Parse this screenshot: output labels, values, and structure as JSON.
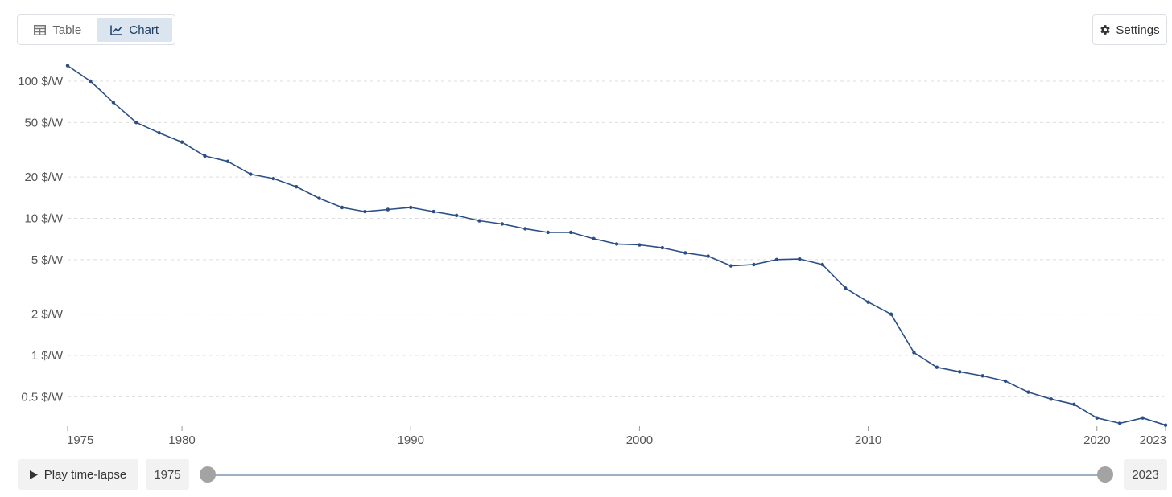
{
  "toolbar": {
    "table_label": "Table",
    "chart_label": "Chart",
    "settings_label": "Settings",
    "active_tab": "Chart"
  },
  "timeline": {
    "play_label": "Play time-lapse",
    "start_year": "1975",
    "end_year": "2023"
  },
  "colors": {
    "series_line": "#2b4f84",
    "active_tab_bg": "#dbe5f0",
    "slider_track": "#9fb0c6",
    "slider_handle": "#a3a3a3"
  },
  "chart_data": {
    "type": "line",
    "title": "",
    "xlabel": "",
    "ylabel": "",
    "yscale": "log",
    "grid": "horizontal dashed",
    "xlim": [
      1975,
      2023
    ],
    "ylim": [
      0.3,
      140
    ],
    "y_ticks": [
      0.5,
      1,
      2,
      5,
      10,
      20,
      50,
      100
    ],
    "y_tick_labels": [
      "0.5 $/W",
      "1 $/W",
      "2 $/W",
      "5 $/W",
      "10 $/W",
      "20 $/W",
      "50 $/W",
      "100 $/W"
    ],
    "x_ticks": [
      1975,
      1980,
      1990,
      2000,
      2010,
      2020,
      2023
    ],
    "x_tick_labels": [
      "1975",
      "1980",
      "1990",
      "2000",
      "2010",
      "2020",
      "2023"
    ],
    "series": [
      {
        "x": [
          1975,
          1976,
          1977,
          1978,
          1979,
          1980,
          1981,
          1982,
          1983,
          1984,
          1985,
          1986,
          1987,
          1988,
          1989,
          1990,
          1991,
          1992,
          1993,
          1994,
          1995,
          1996,
          1997,
          1998,
          1999,
          2000,
          2001,
          2002,
          2003,
          2004,
          2005,
          2006,
          2007,
          2008,
          2009,
          2010,
          2011,
          2012,
          2013,
          2014,
          2015,
          2016,
          2017,
          2018,
          2019,
          2020,
          2021,
          2022,
          2023
        ],
        "y": [
          130,
          100,
          70,
          50,
          42,
          36,
          28.5,
          26,
          21,
          19.5,
          17,
          14,
          12,
          11.2,
          11.6,
          12,
          11.2,
          10.5,
          9.6,
          9.1,
          8.4,
          7.9,
          7.9,
          7.1,
          6.5,
          6.4,
          6.1,
          5.6,
          5.3,
          4.5,
          4.6,
          5,
          5.05,
          4.6,
          3.1,
          2.45,
          2,
          1.05,
          0.82,
          0.76,
          0.71,
          0.65,
          0.54,
          0.48,
          0.44,
          0.35,
          0.32,
          0.35,
          0.31
        ]
      }
    ]
  }
}
